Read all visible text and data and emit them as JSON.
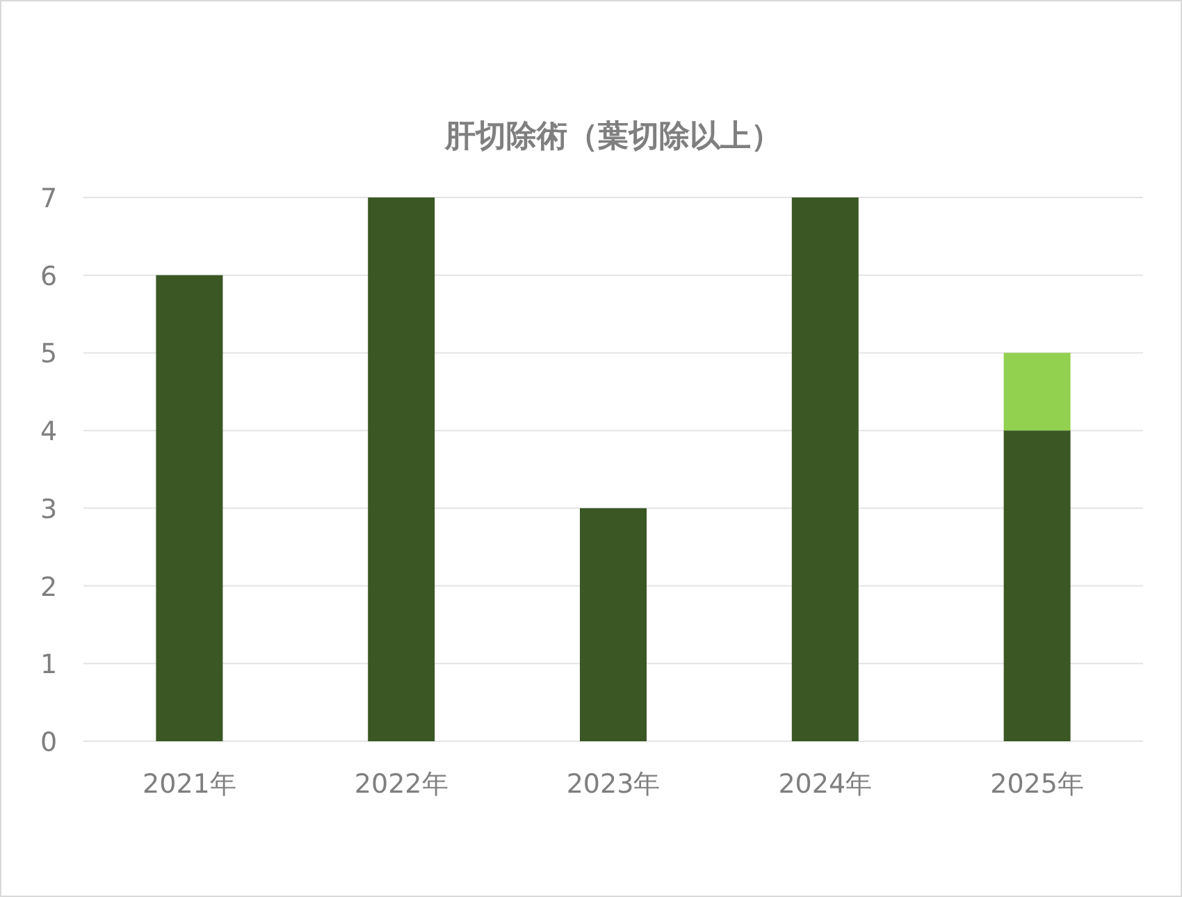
{
  "chart_data": {
    "type": "bar",
    "title": "肝切除術（葉切除以上）",
    "categories": [
      "2021年",
      "2022年",
      "2023年",
      "2024年",
      "2025年"
    ],
    "series": [
      {
        "color": "#3a5724",
        "values": [
          6,
          7,
          3,
          7,
          4
        ]
      },
      {
        "color": "#92d050",
        "values": [
          null,
          null,
          null,
          null,
          1
        ]
      }
    ],
    "stacked": true,
    "ylim": [
      0,
      7
    ],
    "yticks": [
      0,
      1,
      2,
      3,
      4,
      5,
      6,
      7
    ],
    "grid": "y"
  }
}
